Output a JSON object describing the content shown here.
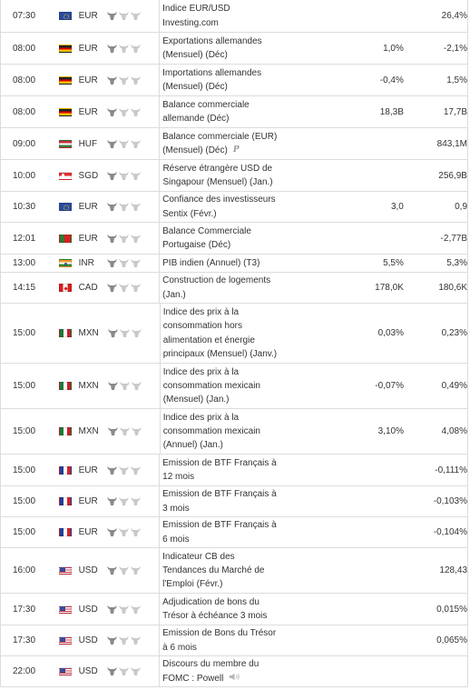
{
  "importance_icon": "bull-icon",
  "rows": [
    {
      "time": "07:30",
      "currency": "EUR",
      "flag": "eu",
      "event": [
        "Indice EUR/USD",
        "Investing.com"
      ],
      "actual": "",
      "forecast": "",
      "previous": "26,4%",
      "height": 36
    },
    {
      "time": "08:00",
      "currency": "EUR",
      "flag": "de",
      "event": [
        "Exportations allemandes",
        "(Mensuel) (Déc)"
      ],
      "actual": "",
      "forecast": "1,0%",
      "previous": "-2,1%",
      "height": 35
    },
    {
      "time": "08:00",
      "currency": "EUR",
      "flag": "de",
      "event": [
        "Importations allemandes",
        "(Mensuel) (Déc)"
      ],
      "actual": "",
      "forecast": "-0,4%",
      "previous": "1,5%",
      "height": 35
    },
    {
      "time": "08:00",
      "currency": "EUR",
      "flag": "de",
      "event": [
        "Balance commerciale",
        "allemande (Déc)"
      ],
      "actual": "",
      "forecast": "18,3B",
      "previous": "17,7B",
      "height": 35
    },
    {
      "time": "09:00",
      "currency": "HUF",
      "flag": "hu",
      "event": [
        "Balance commerciale (EUR)",
        "(Mensuel) (Déc)"
      ],
      "badge": "P",
      "actual": "",
      "forecast": "",
      "previous": "843,1M",
      "height": 35
    },
    {
      "time": "10:00",
      "currency": "SGD",
      "flag": "sg",
      "event": [
        "Réserve étrangère USD de",
        "Singapour (Mensuel) (Jan.)"
      ],
      "actual": "",
      "forecast": "",
      "previous": "256,9B",
      "height": 35
    },
    {
      "time": "10:30",
      "currency": "EUR",
      "flag": "eu",
      "event": [
        "Confiance des investisseurs",
        "Sentix (Févr.)"
      ],
      "actual": "",
      "forecast": "3,0",
      "previous": "0,9",
      "height": 34
    },
    {
      "time": "12:01",
      "currency": "EUR",
      "flag": "pt",
      "event": [
        "Balance Commerciale",
        "Portugaise (Déc)"
      ],
      "actual": "",
      "forecast": "",
      "previous": "-2,77B",
      "height": 35
    },
    {
      "time": "13:00",
      "currency": "INR",
      "flag": "in",
      "event": [
        "PIB indien (Annuel) (T3)"
      ],
      "actual": "",
      "forecast": "5,5%",
      "previous": "5,3%",
      "height": 20
    },
    {
      "time": "14:15",
      "currency": "CAD",
      "flag": "ca",
      "event": [
        "Construction de logements",
        "(Jan.)"
      ],
      "actual": "",
      "forecast": "178,0K",
      "previous": "180,6K",
      "height": 34
    },
    {
      "time": "15:00",
      "currency": "MXN",
      "flag": "mx",
      "event": [
        "Indice des prix à la",
        "consommation hors",
        "alimentation et énergie",
        "principaux (Mensuel) (Janv.)"
      ],
      "actual": "",
      "forecast": "0,03%",
      "previous": "0,23%",
      "height": 66
    },
    {
      "time": "15:00",
      "currency": "MXN",
      "flag": "mx",
      "event": [
        "Indice des prix à la",
        "consommation mexicain",
        "(Mensuel) (Jan.)"
      ],
      "actual": "",
      "forecast": "-0,07%",
      "previous": "0,49%",
      "height": 50
    },
    {
      "time": "15:00",
      "currency": "MXN",
      "flag": "mx",
      "event": [
        "Indice des prix à la",
        "consommation mexicain",
        "(Annuel) (Jan.)"
      ],
      "actual": "",
      "forecast": "3,10%",
      "previous": "4,08%",
      "height": 50
    },
    {
      "time": "15:00",
      "currency": "EUR",
      "flag": "fr",
      "event": [
        "Emission de BTF Français à",
        "12 mois"
      ],
      "actual": "",
      "forecast": "",
      "previous": "-0,111%",
      "height": 35
    },
    {
      "time": "15:00",
      "currency": "EUR",
      "flag": "fr",
      "event": [
        "Emission de BTF Français à",
        "3 mois"
      ],
      "actual": "",
      "forecast": "",
      "previous": "-0,103%",
      "height": 34
    },
    {
      "time": "15:00",
      "currency": "EUR",
      "flag": "fr",
      "event": [
        "Emission de BTF Français à",
        "6 mois"
      ],
      "actual": "",
      "forecast": "",
      "previous": "-0,104%",
      "height": 34
    },
    {
      "time": "16:00",
      "currency": "USD",
      "flag": "us",
      "event": [
        "Indicateur CB des",
        "Tendances du Marché de",
        "l'Emploi (Févr.)"
      ],
      "actual": "",
      "forecast": "",
      "previous": "128,43",
      "height": 50
    },
    {
      "time": "17:30",
      "currency": "USD",
      "flag": "us",
      "event": [
        "Adjudication de bons du",
        "Trésor à échéance 3 mois"
      ],
      "actual": "",
      "forecast": "",
      "previous": "0,015%",
      "height": 35
    },
    {
      "time": "17:30",
      "currency": "USD",
      "flag": "us",
      "event": [
        "Emission de Bons du Trésor",
        "à 6 mois"
      ],
      "actual": "",
      "forecast": "",
      "previous": "0,065%",
      "height": 34
    },
    {
      "time": "22:00",
      "currency": "USD",
      "flag": "us",
      "event": [
        "Discours du membre du",
        "FOMC : Powell"
      ],
      "speech": true,
      "actual": "",
      "forecast": "",
      "previous": "",
      "height": 34
    }
  ]
}
